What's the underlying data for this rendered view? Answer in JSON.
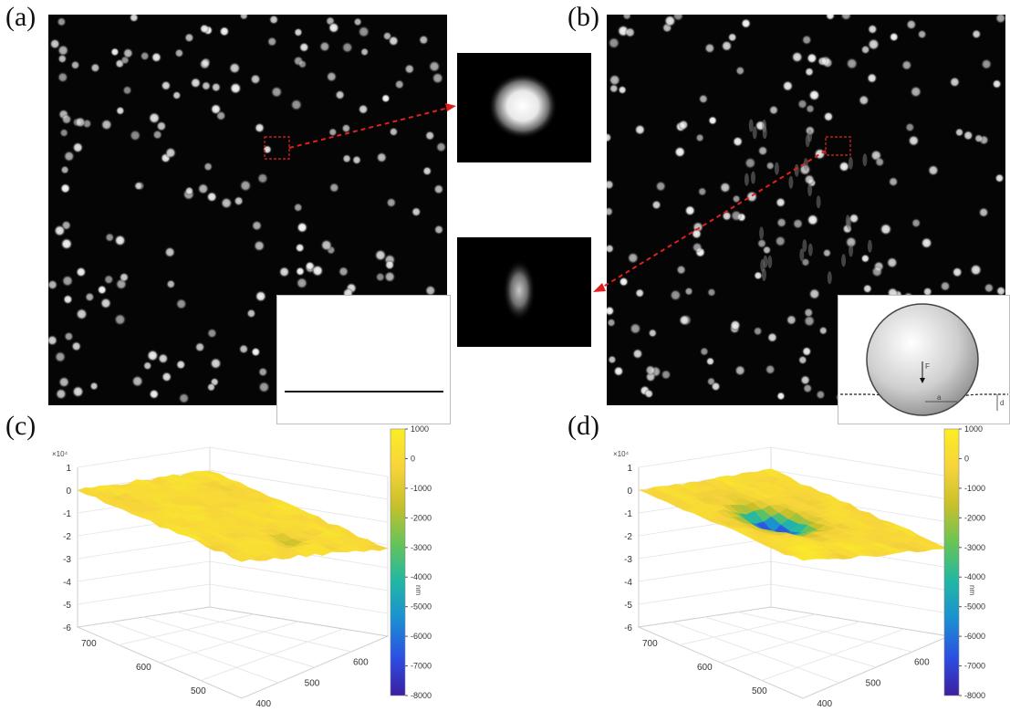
{
  "panels": {
    "a": {
      "label": "(a)"
    },
    "b": {
      "label": "(b)"
    },
    "c": {
      "label": "(c)"
    },
    "d": {
      "label": "(d)"
    }
  },
  "colors": {
    "arrow": "#e0201c",
    "surface_flat": "#f2c23a",
    "surface_dip": "#2a52d6",
    "colormap": [
      "#3b1fa0",
      "#2c4fe3",
      "#1b8fd1",
      "#21b7a5",
      "#66c458",
      "#c8c02b",
      "#f7d43a",
      "#fbee25"
    ]
  },
  "chart_data": [
    {
      "type": "surface",
      "panel": "(c)",
      "z_exponent_label": "×10⁴",
      "z_ticks": [
        "1",
        "0",
        "-1",
        "-2",
        "-3",
        "-4",
        "-5",
        "-6"
      ],
      "y_ticks": [
        "700",
        "600",
        "500"
      ],
      "x_ticks": [
        "400",
        "500",
        "600"
      ],
      "colorbar": {
        "ticks": [
          "1000",
          "0",
          "-1000",
          "-2000",
          "-3000",
          "-4000",
          "-5000",
          "-6000",
          "-7000",
          "-8000"
        ],
        "unit": "nm",
        "range": [
          -8000,
          1000
        ]
      },
      "description_values": {
        "surface_mean": 0,
        "deepest": -2500
      }
    },
    {
      "type": "surface",
      "panel": "(d)",
      "z_exponent_label": "×10⁴",
      "z_ticks": [
        "1",
        "0",
        "-1",
        "-2",
        "-3",
        "-4",
        "-5",
        "-6"
      ],
      "y_ticks": [
        "700",
        "600",
        "500"
      ],
      "x_ticks": [
        "400",
        "500",
        "600"
      ],
      "colorbar": {
        "ticks": [
          "1000",
          "0",
          "-1000",
          "-2000",
          "-3000",
          "-4000",
          "-5000",
          "-6000",
          "-7000",
          "-8000"
        ],
        "unit": "nm",
        "range": [
          -8000,
          1000
        ]
      },
      "description_values": {
        "surface_mean": 0,
        "deepest": -7500
      }
    }
  ],
  "diagram": {
    "sphere_label": "F",
    "depth_label": "d",
    "radius_label": "a"
  }
}
